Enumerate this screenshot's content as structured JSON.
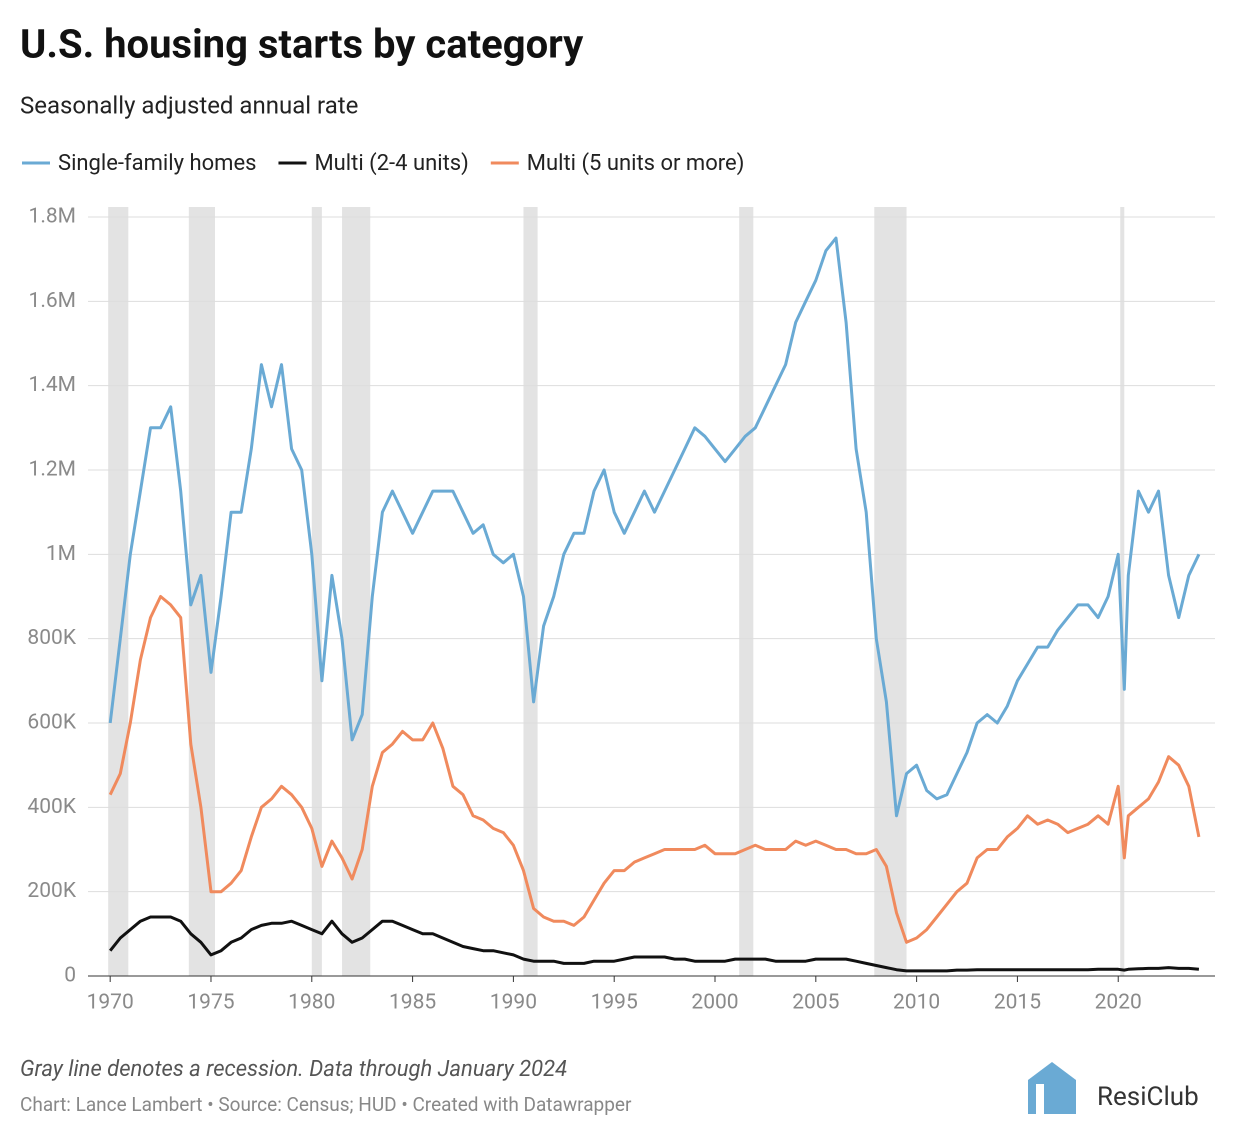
{
  "chart_data": {
    "type": "line",
    "title": "U.S. housing starts by category",
    "subtitle": "Seasonally adjusted annual rate",
    "notes": [
      "Gray line denotes a recession. Data through January 2024",
      "Chart: Lance Lambert • Source: Census; HUD • Created with Datawrapper"
    ],
    "logo": "ResiClub",
    "grid": true,
    "xlim": [
      1968.9,
      2024.8
    ],
    "xticks": [
      1970,
      1975,
      1980,
      1985,
      1990,
      1995,
      2000,
      2005,
      2010,
      2015,
      2020
    ],
    "ylim": [
      0,
      1800000
    ],
    "yticks": [
      0,
      {
        "value": 200000,
        "label": "200K"
      },
      {
        "value": 400000,
        "label": "400K"
      },
      {
        "value": 600000,
        "label": "600K"
      },
      {
        "value": 800000,
        "label": "800K"
      },
      {
        "value": 1000000,
        "label": "1M"
      },
      {
        "value": 1200000,
        "label": "1.2M"
      },
      {
        "value": 1400000,
        "label": "1.4M"
      },
      {
        "value": 1600000,
        "label": "1.6M"
      },
      {
        "value": 1800000,
        "label": "1.8M"
      }
    ],
    "recessions": [
      [
        1969.9,
        1970.9
      ],
      [
        1973.9,
        1975.2
      ],
      [
        1980.0,
        1980.5
      ],
      [
        1981.5,
        1982.9
      ],
      [
        1990.5,
        1991.2
      ],
      [
        2001.2,
        2001.9
      ],
      [
        2007.9,
        2009.5
      ],
      [
        2020.1,
        2020.3
      ]
    ],
    "recession_color": "#e3e3e3",
    "x": [
      1970,
      1970.5,
      1971,
      1971.5,
      1972,
      1972.5,
      1973,
      1973.5,
      1974,
      1974.5,
      1975,
      1975.5,
      1976,
      1976.5,
      1977,
      1977.5,
      1978,
      1978.5,
      1979,
      1979.5,
      1980,
      1980.5,
      1981,
      1981.5,
      1982,
      1982.5,
      1983,
      1983.5,
      1984,
      1984.5,
      1985,
      1985.5,
      1986,
      1986.5,
      1987,
      1987.5,
      1988,
      1988.5,
      1989,
      1989.5,
      1990,
      1990.5,
      1991,
      1991.5,
      1992,
      1992.5,
      1993,
      1993.5,
      1994,
      1994.5,
      1995,
      1995.5,
      1996,
      1996.5,
      1997,
      1997.5,
      1998,
      1998.5,
      1999,
      1999.5,
      2000,
      2000.5,
      2001,
      2001.5,
      2002,
      2002.5,
      2003,
      2003.5,
      2004,
      2004.5,
      2005,
      2005.5,
      2006,
      2006.5,
      2007,
      2007.5,
      2008,
      2008.5,
      2009,
      2009.5,
      2010,
      2010.5,
      2011,
      2011.5,
      2012,
      2012.5,
      2013,
      2013.5,
      2014,
      2014.5,
      2015,
      2015.5,
      2016,
      2016.5,
      2017,
      2017.5,
      2018,
      2018.5,
      2019,
      2019.5,
      2020,
      2020.3,
      2020.5,
      2021,
      2021.5,
      2022,
      2022.5,
      2023,
      2023.5,
      2024
    ],
    "series": [
      {
        "name": "Single-family homes",
        "color": "#6aaad4",
        "values": [
          600000,
          800000,
          1000000,
          1150000,
          1300000,
          1300000,
          1350000,
          1150000,
          880000,
          950000,
          720000,
          900000,
          1100000,
          1100000,
          1250000,
          1450000,
          1350000,
          1450000,
          1250000,
          1200000,
          1000000,
          700000,
          950000,
          800000,
          560000,
          620000,
          900000,
          1100000,
          1150000,
          1100000,
          1050000,
          1100000,
          1150000,
          1150000,
          1150000,
          1100000,
          1050000,
          1070000,
          1000000,
          980000,
          1000000,
          900000,
          650000,
          830000,
          900000,
          1000000,
          1050000,
          1050000,
          1150000,
          1200000,
          1100000,
          1050000,
          1100000,
          1150000,
          1100000,
          1150000,
          1200000,
          1250000,
          1300000,
          1280000,
          1250000,
          1220000,
          1250000,
          1280000,
          1300000,
          1350000,
          1400000,
          1450000,
          1550000,
          1600000,
          1650000,
          1720000,
          1750000,
          1550000,
          1250000,
          1100000,
          800000,
          650000,
          380000,
          480000,
          500000,
          440000,
          420000,
          430000,
          480000,
          530000,
          600000,
          620000,
          600000,
          640000,
          700000,
          740000,
          780000,
          780000,
          820000,
          850000,
          880000,
          880000,
          850000,
          900000,
          1000000,
          680000,
          950000,
          1150000,
          1100000,
          1150000,
          950000,
          850000,
          950000,
          1000000
        ]
      },
      {
        "name": "Multi (2-4 units)",
        "color": "#111111",
        "values": [
          60000,
          90000,
          110000,
          130000,
          140000,
          140000,
          140000,
          130000,
          100000,
          80000,
          50000,
          60000,
          80000,
          90000,
          110000,
          120000,
          125000,
          125000,
          130000,
          120000,
          110000,
          100000,
          130000,
          100000,
          80000,
          90000,
          110000,
          130000,
          130000,
          120000,
          110000,
          100000,
          100000,
          90000,
          80000,
          70000,
          65000,
          60000,
          60000,
          55000,
          50000,
          40000,
          35000,
          35000,
          35000,
          30000,
          30000,
          30000,
          35000,
          35000,
          35000,
          40000,
          45000,
          45000,
          45000,
          45000,
          40000,
          40000,
          35000,
          35000,
          35000,
          35000,
          40000,
          40000,
          40000,
          40000,
          35000,
          35000,
          35000,
          35000,
          40000,
          40000,
          40000,
          40000,
          35000,
          30000,
          25000,
          20000,
          15000,
          12000,
          12000,
          12000,
          12000,
          12000,
          14000,
          14000,
          15000,
          15000,
          15000,
          15000,
          15000,
          15000,
          15000,
          15000,
          15000,
          15000,
          15000,
          15000,
          16000,
          16000,
          16000,
          14000,
          16000,
          17000,
          18000,
          18000,
          20000,
          18000,
          18000,
          16000
        ]
      },
      {
        "name": "Multi (5 units or more)",
        "color": "#f08a5d",
        "values": [
          430000,
          480000,
          600000,
          750000,
          850000,
          900000,
          880000,
          850000,
          550000,
          400000,
          200000,
          200000,
          220000,
          250000,
          330000,
          400000,
          420000,
          450000,
          430000,
          400000,
          350000,
          260000,
          320000,
          280000,
          230000,
          300000,
          450000,
          530000,
          550000,
          580000,
          560000,
          560000,
          600000,
          540000,
          450000,
          430000,
          380000,
          370000,
          350000,
          340000,
          310000,
          250000,
          160000,
          140000,
          130000,
          130000,
          120000,
          140000,
          180000,
          220000,
          250000,
          250000,
          270000,
          280000,
          290000,
          300000,
          300000,
          300000,
          300000,
          310000,
          290000,
          290000,
          290000,
          300000,
          310000,
          300000,
          300000,
          300000,
          320000,
          310000,
          320000,
          310000,
          300000,
          300000,
          290000,
          290000,
          300000,
          260000,
          150000,
          80000,
          90000,
          110000,
          140000,
          170000,
          200000,
          220000,
          280000,
          300000,
          300000,
          330000,
          350000,
          380000,
          360000,
          370000,
          360000,
          340000,
          350000,
          360000,
          380000,
          360000,
          450000,
          280000,
          380000,
          400000,
          420000,
          460000,
          520000,
          500000,
          450000,
          330000
        ]
      }
    ]
  }
}
